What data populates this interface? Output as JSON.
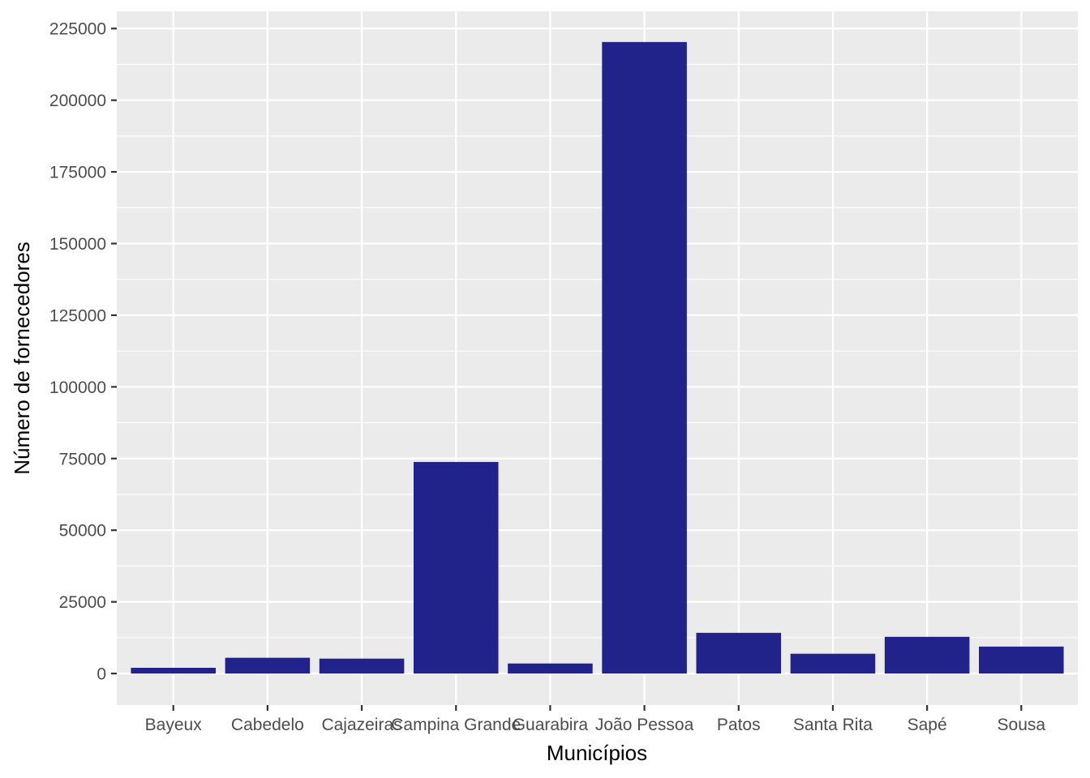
{
  "chart_data": {
    "type": "bar",
    "title": "",
    "xlabel": "Municípios",
    "ylabel": "Número de fornecedores",
    "categories": [
      "Bayeux",
      "Cabedelo",
      "Cajazeiras",
      "Campina Grande",
      "Guarabira",
      "João Pessoa",
      "Patos",
      "Santa Rita",
      "Sapé",
      "Sousa"
    ],
    "values": [
      2000,
      5500,
      5200,
      73800,
      3500,
      220300,
      14200,
      6900,
      12800,
      9400
    ],
    "ylim": [
      -11000,
      231000
    ],
    "yticks": [
      0,
      25000,
      50000,
      75000,
      100000,
      125000,
      150000,
      175000,
      200000,
      225000
    ],
    "ytick_labels": [
      "0",
      "25000",
      "50000",
      "75000",
      "100000",
      "125000",
      "150000",
      "175000",
      "200000",
      "225000"
    ],
    "grid": true,
    "legend": "none",
    "colors": {
      "bar": "#22228b",
      "panel": "#ebebeb",
      "grid": "#ffffff",
      "tick": "#333333"
    }
  }
}
